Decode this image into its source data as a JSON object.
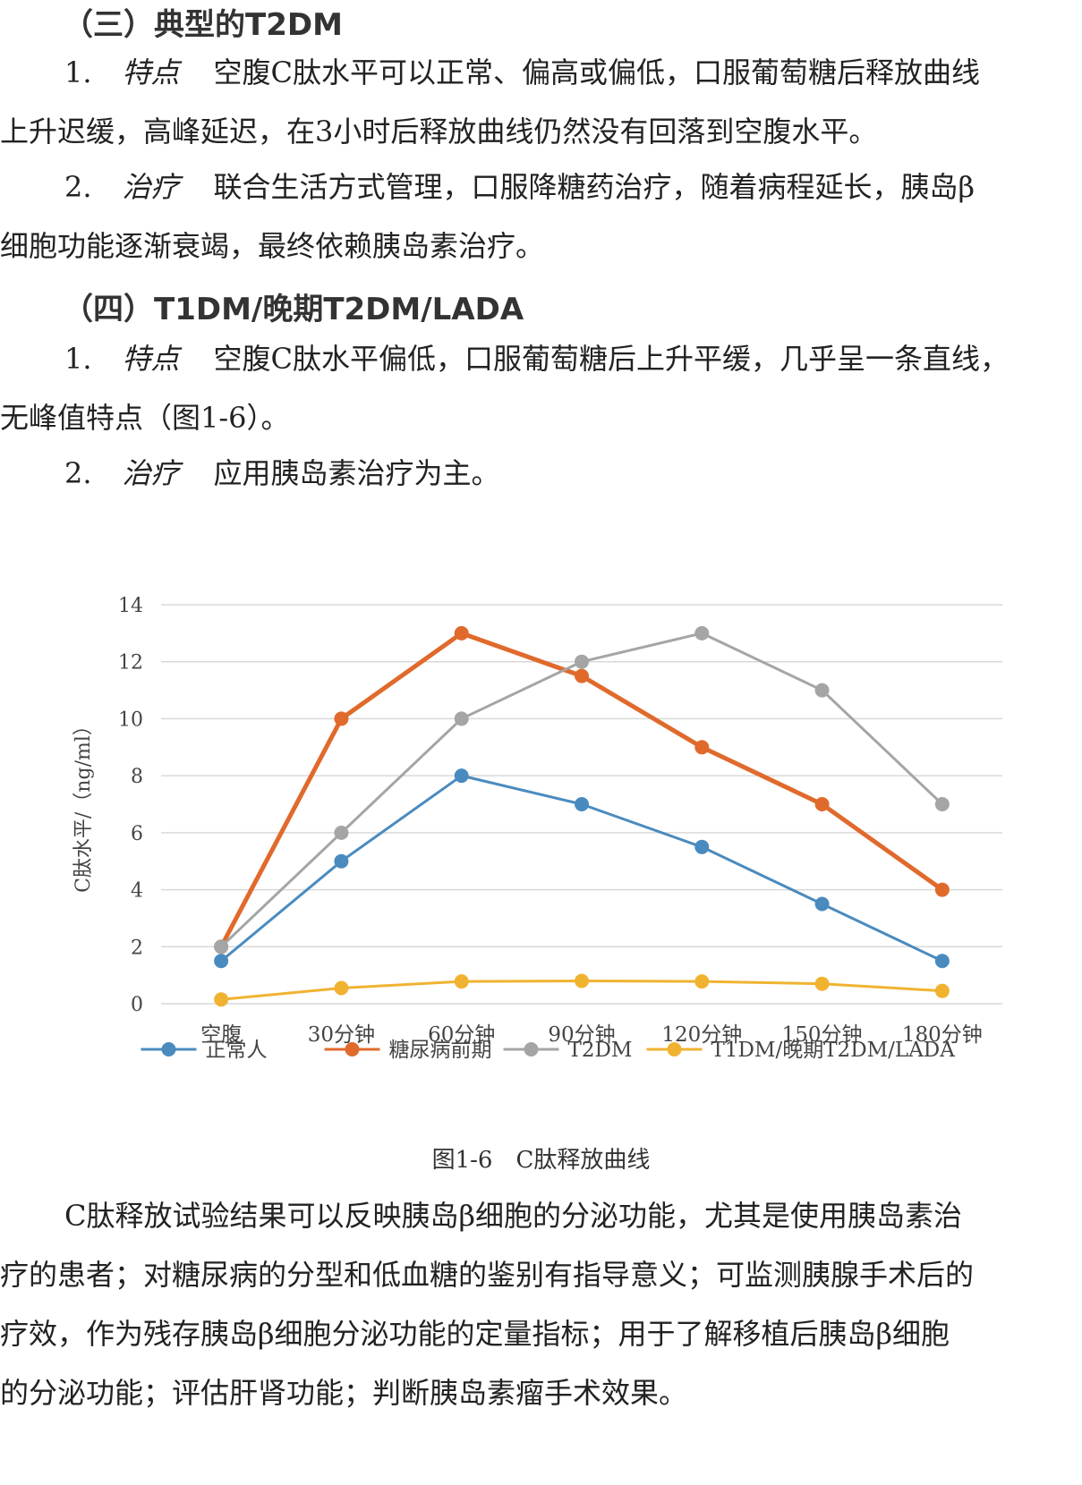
{
  "sec3": {
    "heading": "（三）典型的T2DM",
    "p1": {
      "num": "1.",
      "kw": "特点",
      "line1": "空腹C肽水平可以正常、偏高或偏低，口服葡萄糖后释放曲线",
      "line2": "上升迟缓，高峰延迟，在3小时后释放曲线仍然没有回落到空腹水平。"
    },
    "p2": {
      "num": "2.",
      "kw": "治疗",
      "line1": "联合生活方式管理，口服降糖药治疗，随着病程延长，胰岛β",
      "line2": "细胞功能逐渐衰竭，最终依赖胰岛素治疗。"
    }
  },
  "sec4": {
    "heading": "（四）T1DM/晚期T2DM/LADA",
    "p1": {
      "num": "1.",
      "kw": "特点",
      "line1": "空腹C肽水平偏低，口服葡萄糖后上升平缓，几乎呈一条直线，",
      "line2": "无峰值特点（图1-6）。"
    },
    "p2": {
      "num": "2.",
      "kw": "治疗",
      "line1": "应用胰岛素治疗为主。"
    }
  },
  "figure": {
    "caption": "图1-6　C肽释放曲线"
  },
  "chart_data": {
    "type": "line",
    "ylabel": "C肽水平/（ng/ml）",
    "xlabel": "",
    "ylim": [
      0,
      14
    ],
    "yticks": [
      0,
      2,
      4,
      6,
      8,
      10,
      12,
      14
    ],
    "grid": true,
    "legend": "bottom",
    "categories": [
      "空腹",
      "30分钟",
      "60分钟",
      "90分钟",
      "120分钟",
      "150分钟",
      "180分钟"
    ],
    "series": [
      {
        "name": "正常人",
        "color": "#4a8bbf",
        "values": [
          1.5,
          5.0,
          8.0,
          7.0,
          5.5,
          3.5,
          1.5
        ]
      },
      {
        "name": "糖尿病前期",
        "color": "#e06a2c",
        "values": [
          2.0,
          10.0,
          13.0,
          11.5,
          9.0,
          7.0,
          4.0
        ]
      },
      {
        "name": "T2DM",
        "color": "#a5a5a5",
        "values": [
          2.0,
          6.0,
          10.0,
          12.0,
          13.0,
          11.0,
          7.0
        ]
      },
      {
        "name": "T1DM/晚期T2DM/LADA",
        "color": "#f0b331",
        "values": [
          0.15,
          0.55,
          0.78,
          0.8,
          0.78,
          0.7,
          0.45
        ]
      }
    ]
  },
  "closing": {
    "line1": "C肽释放试验结果可以反映胰岛β细胞的分泌功能，尤其是使用胰岛素治",
    "line2": "疗的患者；对糖尿病的分型和低血糖的鉴别有指导意义；可监测胰腺手术后的",
    "line3": "疗效，作为残存胰岛β细胞分泌功能的定量指标；用于了解移植后胰岛β细胞",
    "line4": "的分泌功能；评估肝肾功能；判断胰岛素瘤手术效果。"
  }
}
